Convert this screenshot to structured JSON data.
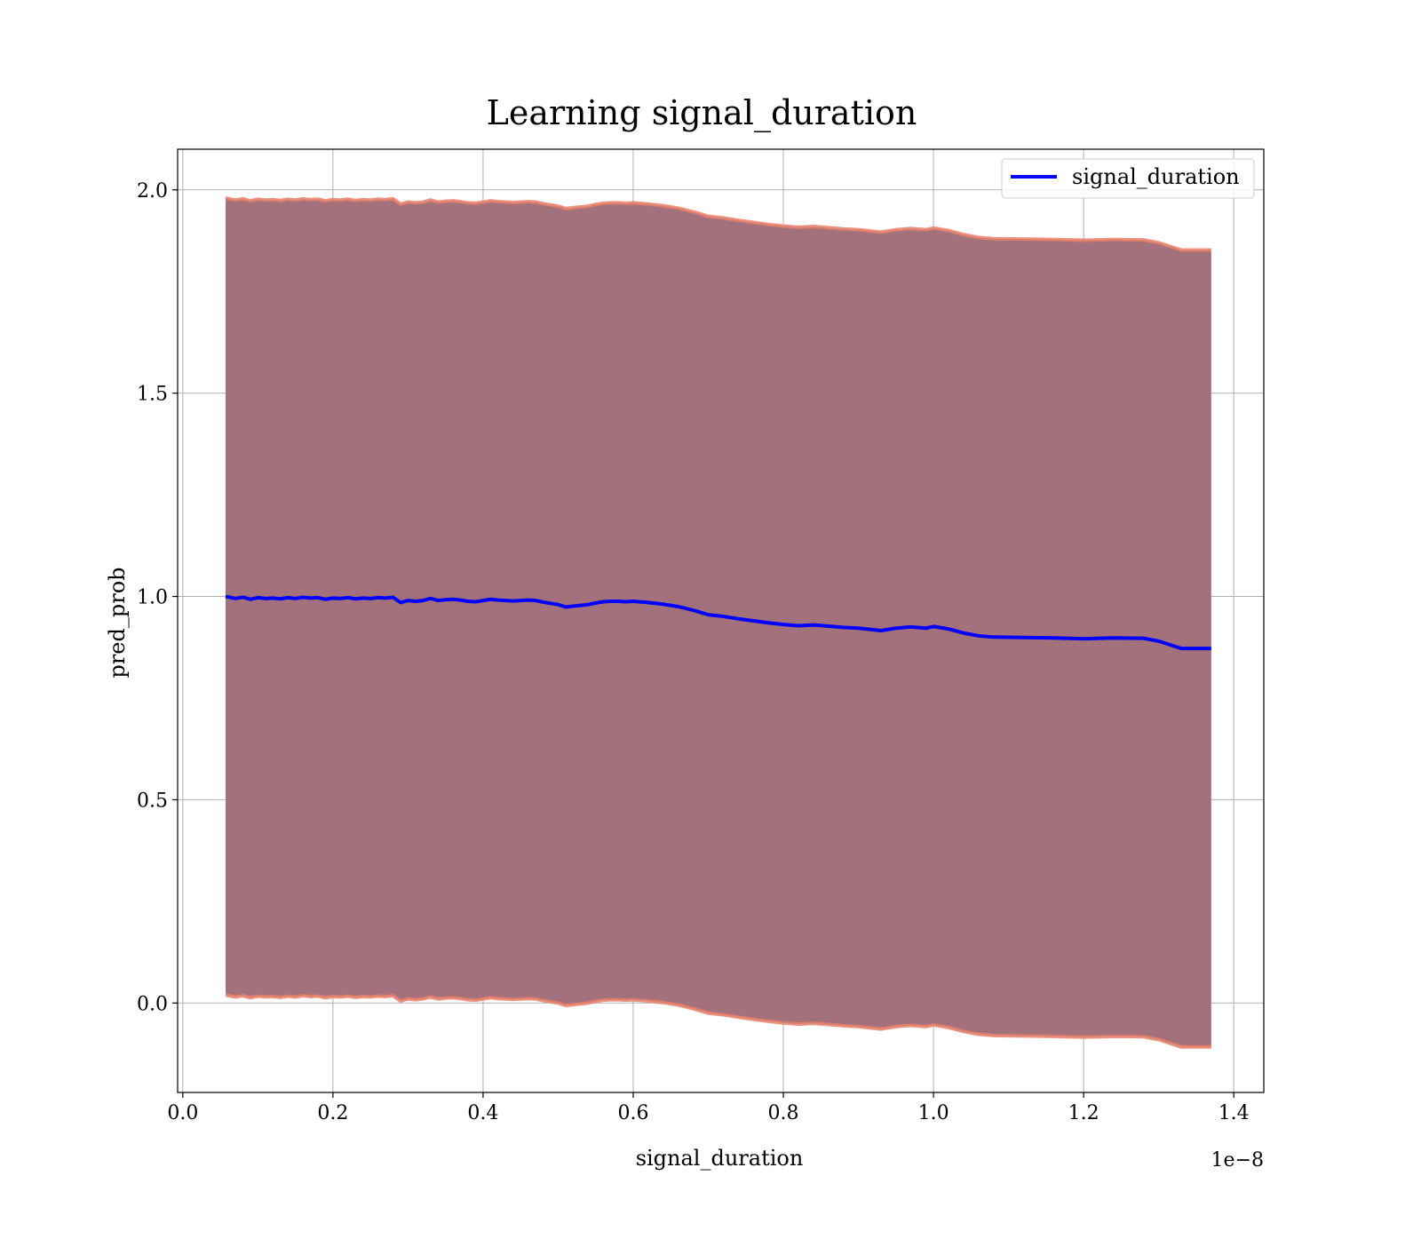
{
  "chart_data": {
    "type": "line",
    "title": "Learning signal_duration",
    "xlabel": "signal_duration",
    "ylabel": "pred_prob",
    "x_offset_label": "1e−8",
    "xlim": [
      -0.0069,
      1.44
    ],
    "ylim": [
      -0.22,
      2.1
    ],
    "x_ticks": [
      0.0,
      0.2,
      0.4,
      0.6,
      0.8,
      1.0,
      1.2,
      1.4
    ],
    "x_tick_labels": [
      "0.0",
      "0.2",
      "0.4",
      "0.6",
      "0.8",
      "1.0",
      "1.2",
      "1.4"
    ],
    "y_ticks": [
      0.0,
      0.5,
      1.0,
      1.5,
      2.0
    ],
    "y_tick_labels": [
      "0.0",
      "0.5",
      "1.0",
      "1.5",
      "2.0"
    ],
    "grid": true,
    "legend_position": "top-right",
    "series": [
      {
        "name": "signal_duration",
        "color": "#0000ff",
        "x": [
          0.057,
          0.07,
          0.08,
          0.09,
          0.1,
          0.11,
          0.12,
          0.13,
          0.14,
          0.15,
          0.16,
          0.17,
          0.18,
          0.19,
          0.2,
          0.21,
          0.22,
          0.23,
          0.24,
          0.25,
          0.26,
          0.27,
          0.28,
          0.29,
          0.3,
          0.31,
          0.32,
          0.33,
          0.34,
          0.35,
          0.36,
          0.37,
          0.38,
          0.39,
          0.4,
          0.41,
          0.42,
          0.43,
          0.44,
          0.45,
          0.46,
          0.47,
          0.48,
          0.49,
          0.5,
          0.51,
          0.52,
          0.53,
          0.54,
          0.55,
          0.56,
          0.57,
          0.58,
          0.59,
          0.6,
          0.62,
          0.64,
          0.66,
          0.68,
          0.7,
          0.72,
          0.74,
          0.76,
          0.78,
          0.8,
          0.82,
          0.84,
          0.86,
          0.88,
          0.9,
          0.93,
          0.95,
          0.97,
          0.99,
          1.0,
          1.02,
          1.04,
          1.06,
          1.08,
          1.12,
          1.16,
          1.2,
          1.24,
          1.28,
          1.3,
          1.33,
          1.37
        ],
        "y": [
          1.0,
          0.995,
          0.998,
          0.993,
          0.997,
          0.995,
          0.996,
          0.994,
          0.997,
          0.995,
          0.998,
          0.996,
          0.997,
          0.993,
          0.996,
          0.995,
          0.997,
          0.994,
          0.996,
          0.995,
          0.997,
          0.996,
          0.998,
          0.985,
          0.99,
          0.988,
          0.99,
          0.995,
          0.99,
          0.992,
          0.993,
          0.991,
          0.988,
          0.987,
          0.99,
          0.993,
          0.991,
          0.99,
          0.989,
          0.99,
          0.991,
          0.99,
          0.986,
          0.983,
          0.98,
          0.974,
          0.976,
          0.978,
          0.98,
          0.984,
          0.987,
          0.988,
          0.988,
          0.987,
          0.988,
          0.985,
          0.981,
          0.975,
          0.966,
          0.955,
          0.951,
          0.945,
          0.94,
          0.935,
          0.931,
          0.928,
          0.93,
          0.927,
          0.924,
          0.922,
          0.916,
          0.922,
          0.925,
          0.922,
          0.926,
          0.92,
          0.91,
          0.903,
          0.9,
          0.899,
          0.898,
          0.896,
          0.898,
          0.897,
          0.89,
          0.872,
          0.872
        ]
      }
    ],
    "band": {
      "fill": "#a3717b",
      "edge": "#e7806a",
      "upper_offset": 0.98,
      "lower_offset": -0.98
    }
  }
}
